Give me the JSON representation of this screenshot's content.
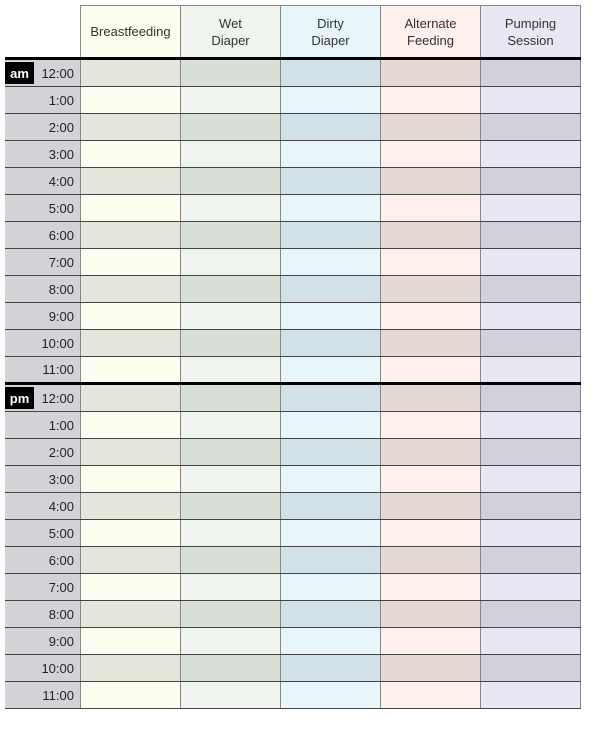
{
  "columns": [
    {
      "label": "Breastfeeding",
      "light": "#fefef0",
      "dark": "#e5e5dc"
    },
    {
      "label": "Wet\nDiaper",
      "light": "#eff4ee",
      "dark": "#d8dfd7"
    },
    {
      "label": "Dirty\nDiaper",
      "light": "#e8f6fc",
      "dark": "#d2e1e8"
    },
    {
      "label": "Alternate\nFeeding",
      "light": "#fdf0ed",
      "dark": "#e4d9d4"
    },
    {
      "label": "Pumping\nSession",
      "light": "#e9e7f3",
      "dark": "#d1d1dc"
    }
  ],
  "periods": [
    {
      "label": "am",
      "times": [
        "12:00",
        "1:00",
        "2:00",
        "3:00",
        "4:00",
        "5:00",
        "6:00",
        "7:00",
        "8:00",
        "9:00",
        "10:00",
        "11:00"
      ]
    },
    {
      "label": "pm",
      "times": [
        "12:00",
        "1:00",
        "2:00",
        "3:00",
        "4:00",
        "5:00",
        "6:00",
        "7:00",
        "8:00",
        "9:00",
        "10:00",
        "11:00"
      ]
    }
  ]
}
